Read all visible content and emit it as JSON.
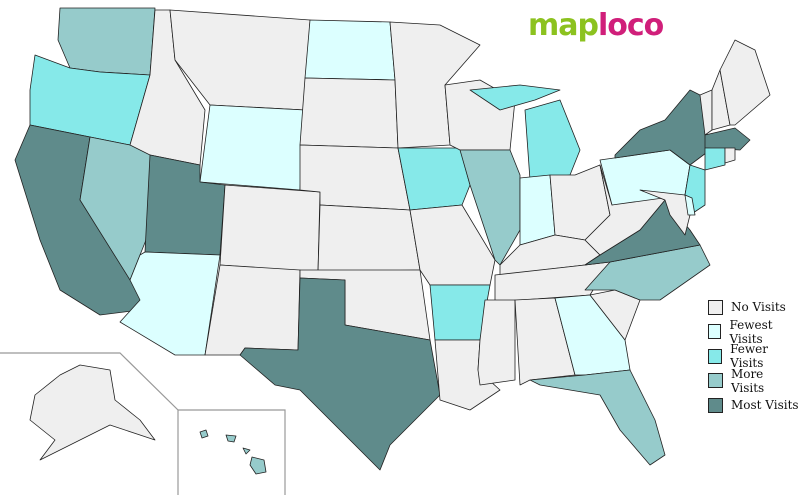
{
  "logo": {
    "part1": "map",
    "part2": "loco"
  },
  "colors": {
    "none": "#efefef",
    "fewest": "#dcffff",
    "fewer": "#86e9e9",
    "more": "#96cbcb",
    "most": "#5f8b8b",
    "outline": "#222222",
    "inset_border": "#999999"
  },
  "legend": [
    {
      "key": "none",
      "label": "No Visits"
    },
    {
      "key": "fewest",
      "label": "Fewest Visits"
    },
    {
      "key": "fewer",
      "label": "Fewer Visits"
    },
    {
      "key": "more",
      "label": "More Visits"
    },
    {
      "key": "most",
      "label": "Most Visits"
    }
  ],
  "states": {
    "WA": "more",
    "OR": "fewer",
    "CA": "most",
    "NV": "more",
    "ID": "none",
    "MT": "none",
    "WY": "fewest",
    "UT": "most",
    "AZ": "fewest",
    "CO": "none",
    "NM": "none",
    "ND": "fewest",
    "SD": "none",
    "NE": "none",
    "KS": "none",
    "OK": "none",
    "TX": "most",
    "MN": "none",
    "IA": "fewer",
    "MO": "none",
    "AR": "fewer",
    "LA": "none",
    "WI": "none",
    "IL": "more",
    "MI": "fewer",
    "IN": "fewest",
    "OH": "none",
    "KY": "none",
    "TN": "none",
    "MS": "none",
    "AL": "none",
    "GA": "fewest",
    "FL": "more",
    "SC": "none",
    "NC": "more",
    "VA": "most",
    "WV": "none",
    "PA": "fewest",
    "NY": "most",
    "NJ": "fewer",
    "DE": "fewest",
    "MD": "none",
    "VT": "none",
    "NH": "none",
    "ME": "none",
    "MA": "most",
    "CT": "fewer",
    "RI": "none",
    "AK": "none",
    "HI": "more"
  }
}
